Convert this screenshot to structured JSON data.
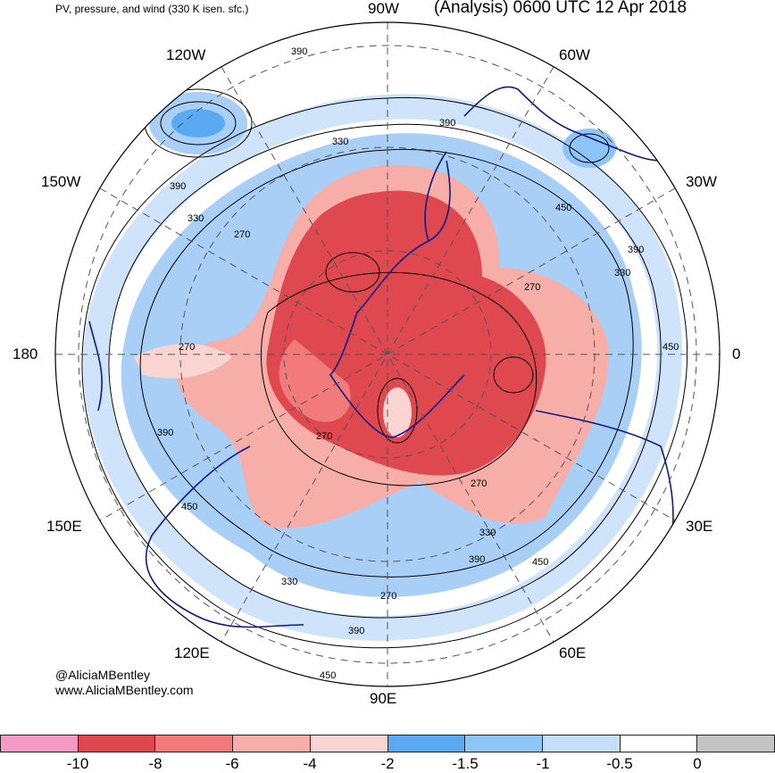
{
  "header": {
    "subtitle": "PV, pressure, and wind (330 K isen. sfc.)",
    "title": "(Analysis) 0600 UTC 12 Apr 2018"
  },
  "longitude_labels": [
    "90W",
    "60W",
    "30W",
    "0",
    "30E",
    "60E",
    "90E",
    "120E",
    "150E",
    "180",
    "150W",
    "120W"
  ],
  "contour_labels": [
    "390",
    "390",
    "330",
    "390",
    "330",
    "270",
    "450",
    "390",
    "330",
    "270",
    "450",
    "270",
    "390",
    "450",
    "270",
    "270",
    "330",
    "390",
    "450",
    "330",
    "270",
    "390",
    "450"
  ],
  "credits": {
    "handle": "@AliciaMBentley",
    "website": "www.AliciaMBentley.com"
  },
  "colorbar": {
    "colors": [
      "#f59ac4",
      "#e0484f",
      "#f27a7a",
      "#f7aea8",
      "#fad4d0",
      "#5aa9f2",
      "#8fc4f7",
      "#c5dffb",
      "#ffffff",
      "#c4c4c4"
    ],
    "tick_labels": [
      "-10",
      "-8",
      "-6",
      "-4",
      "-2",
      "-1.5",
      "-1",
      "-0.5",
      "0"
    ]
  },
  "style": {
    "coastline_color": "#0c1a8c",
    "contour_color": "#000000"
  }
}
